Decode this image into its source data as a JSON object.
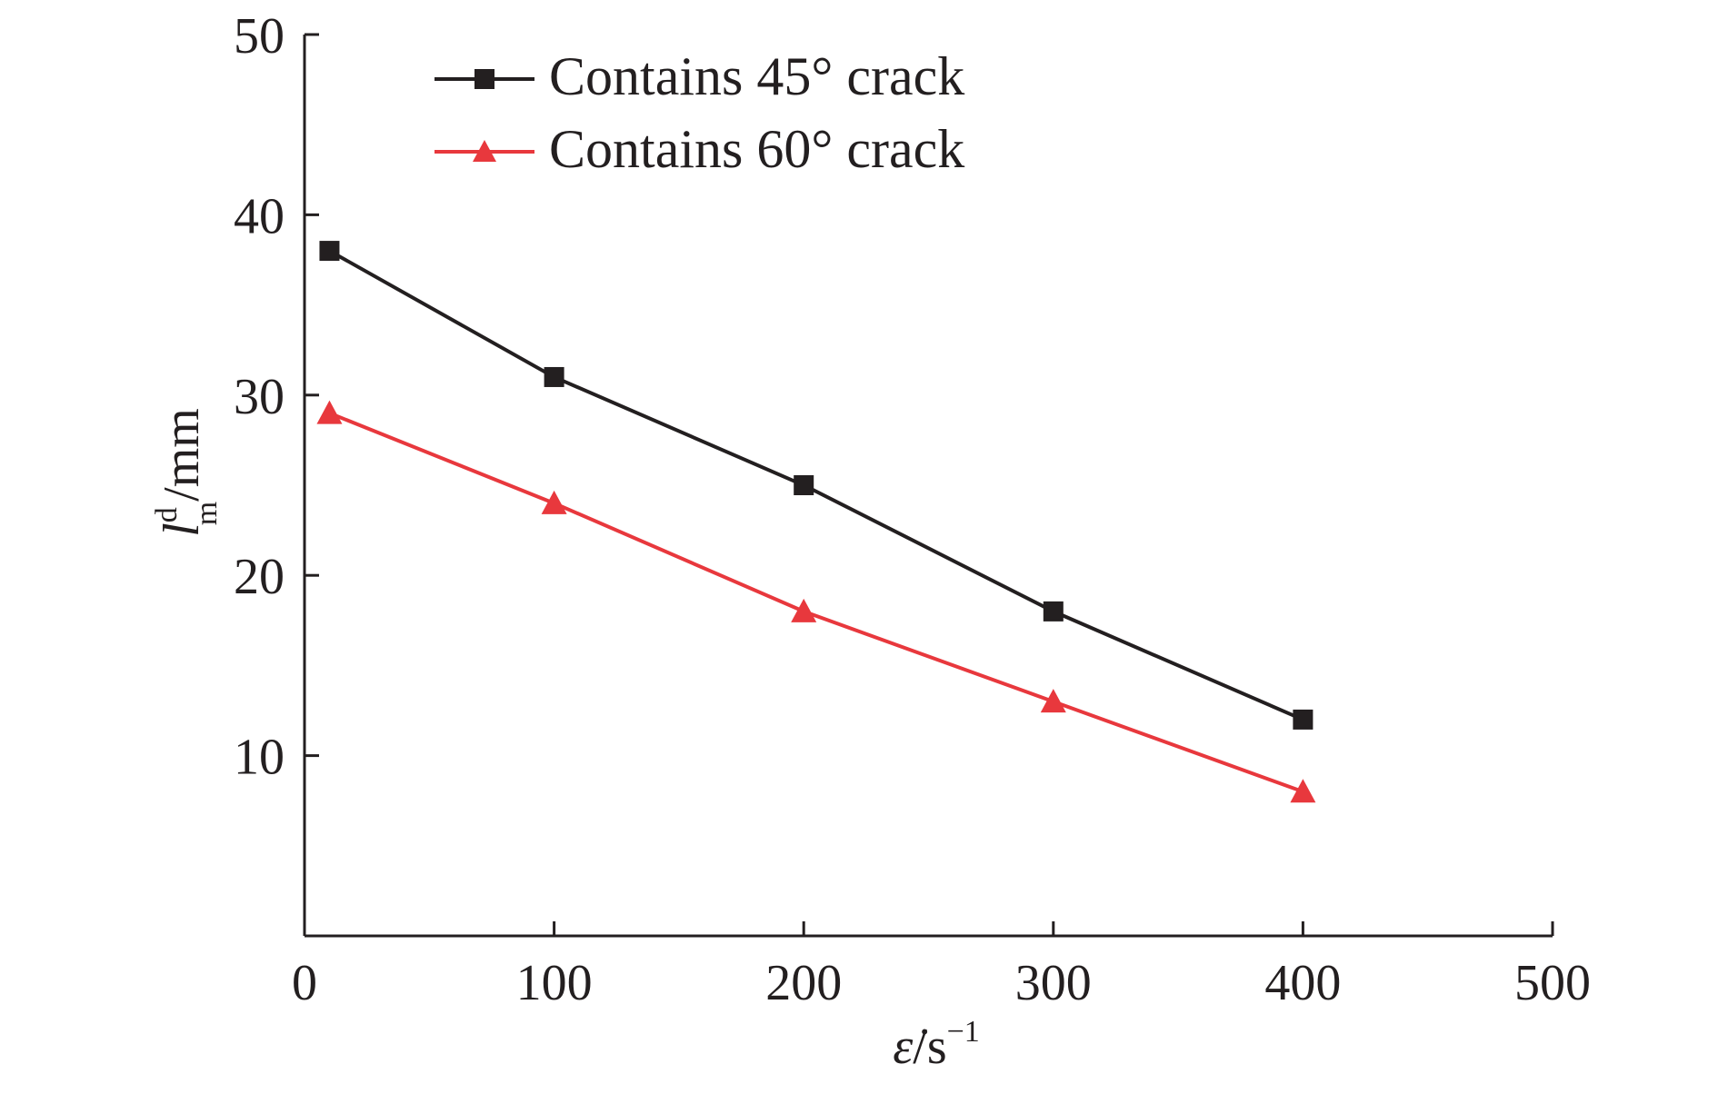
{
  "chart_data": {
    "type": "line",
    "x": [
      10,
      100,
      200,
      300,
      400
    ],
    "series": [
      {
        "name": "Contains 45° crack",
        "values": [
          38,
          31,
          25,
          18,
          12
        ],
        "color": "#231f20",
        "marker": "square"
      },
      {
        "name": "Contains 60° crack",
        "values": [
          29,
          24,
          18,
          13,
          8
        ],
        "color": "#e8383d",
        "marker": "triangle"
      }
    ],
    "xlim": [
      0,
      500
    ],
    "ylim": [
      0,
      50
    ],
    "xticks": [
      "0",
      "100",
      "200",
      "300",
      "400",
      "500"
    ],
    "yticks": [
      "10",
      "20",
      "30",
      "40",
      "50"
    ],
    "xlabel": {
      "base": "ε̇",
      "unit": "/s",
      "exponent": "−1"
    },
    "ylabel": {
      "base": "l",
      "subscript": "m",
      "superscript": "d",
      "unit": "/mm"
    },
    "grid": false,
    "legend_position": "top-left"
  }
}
